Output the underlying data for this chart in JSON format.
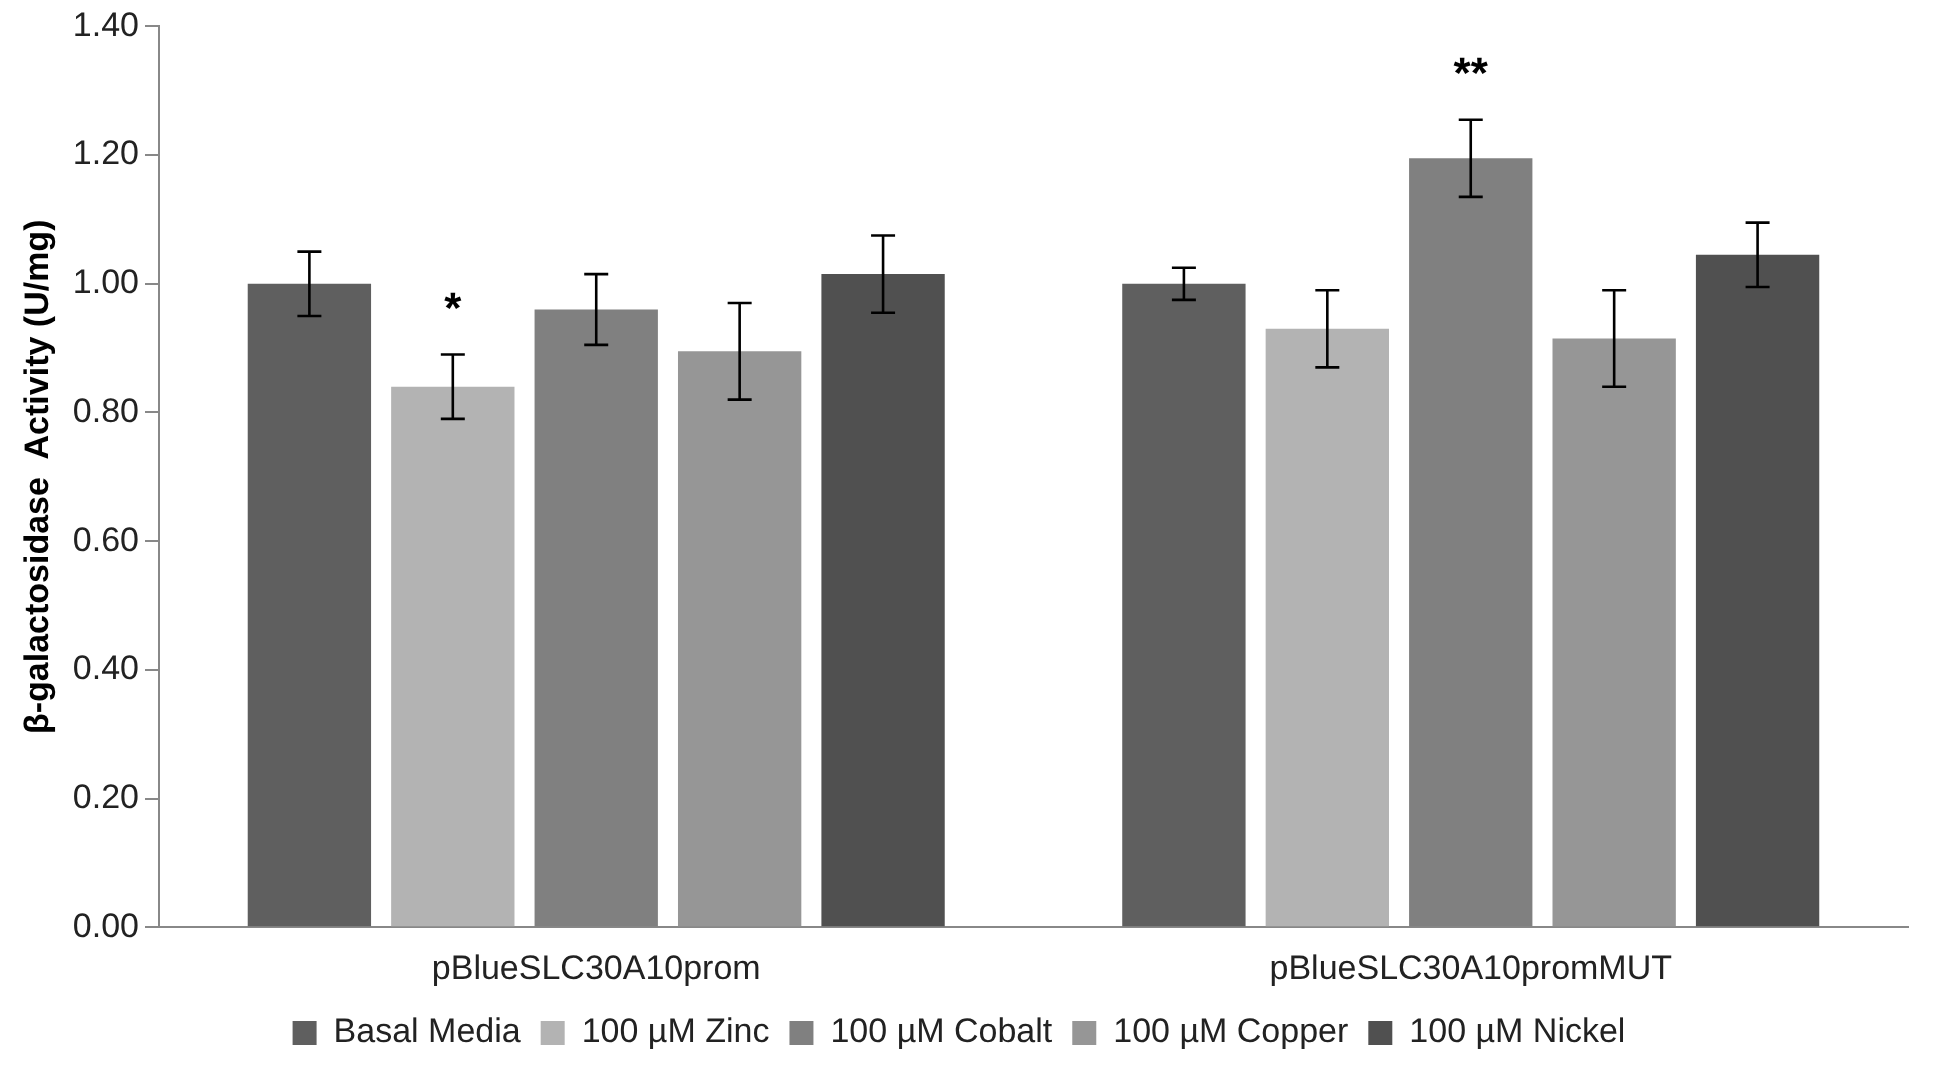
{
  "chart_data": {
    "type": "bar",
    "ylabel": "β-galactosidase  Activity (U/mg)",
    "categories": [
      "pBlueSLC30A10prom",
      "pBlueSLC30A10promMUT"
    ],
    "series": [
      {
        "name": "Basal Media",
        "color": "#5f5f5f",
        "values": [
          1.0,
          1.0
        ],
        "errors": [
          0.05,
          0.025
        ]
      },
      {
        "name": "100 µM Zinc",
        "color": "#b3b3b3",
        "values": [
          0.84,
          0.93
        ],
        "errors": [
          0.05,
          0.06
        ]
      },
      {
        "name": "100 µM Cobalt",
        "color": "#808080",
        "values": [
          0.96,
          1.195
        ],
        "errors": [
          0.055,
          0.06
        ]
      },
      {
        "name": "100 µM Copper",
        "color": "#969696",
        "values": [
          0.895,
          0.915
        ],
        "errors": [
          0.075,
          0.075
        ]
      },
      {
        "name": "100 µM Nickel",
        "color": "#505050",
        "values": [
          1.015,
          1.045
        ],
        "errors": [
          0.06,
          0.05
        ]
      }
    ],
    "ylim": [
      0,
      1.4
    ],
    "yticks": [
      {
        "value": 0,
        "label": "0.00"
      },
      {
        "value": 0.2,
        "label": "0.20"
      },
      {
        "value": 0.4,
        "label": "0.40"
      },
      {
        "value": 0.6,
        "label": "0.60"
      },
      {
        "value": 0.8,
        "label": "0.80"
      },
      {
        "value": 1.0,
        "label": "1.00"
      },
      {
        "value": 1.2,
        "label": "1.20"
      },
      {
        "value": 1.4,
        "label": "1.40"
      }
    ],
    "grid": false,
    "legend": "bottom",
    "annotations": [
      "*",
      "**"
    ]
  }
}
